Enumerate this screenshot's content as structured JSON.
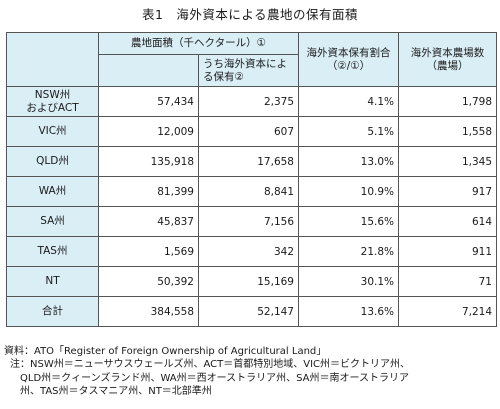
{
  "title": "表1　海外資本による農地の保有面積",
  "table": {
    "header": {
      "farmland_area": "農地面積（千ヘクタール）①",
      "foreign_owned": "うち海外資本による保有②",
      "foreign_ratio": "海外資本保有割合（②/①）",
      "farm_count": "海外資本農場数（農場）"
    },
    "rows": [
      {
        "label": "NSW州\nおよびACT",
        "area": "57,434",
        "foreign": "2,375",
        "ratio": "4.1%",
        "farms": "1,798"
      },
      {
        "label": "VIC州",
        "area": "12,009",
        "foreign": "607",
        "ratio": "5.1%",
        "farms": "1,558"
      },
      {
        "label": "QLD州",
        "area": "135,918",
        "foreign": "17,658",
        "ratio": "13.0%",
        "farms": "1,345"
      },
      {
        "label": "WA州",
        "area": "81,399",
        "foreign": "8,841",
        "ratio": "10.9%",
        "farms": "917"
      },
      {
        "label": "SA州",
        "area": "45,837",
        "foreign": "7,156",
        "ratio": "15.6%",
        "farms": "614"
      },
      {
        "label": "TAS州",
        "area": "1,569",
        "foreign": "342",
        "ratio": "21.8%",
        "farms": "911"
      },
      {
        "label": "NT",
        "area": "50,392",
        "foreign": "15,169",
        "ratio": "30.1%",
        "farms": "71"
      },
      {
        "label": "合計",
        "area": "384,558",
        "foreign": "52,147",
        "ratio": "13.6%",
        "farms": "7,214"
      }
    ]
  },
  "notes": {
    "source": "資料：ATO「Register of Foreign Ownership of Agricultural Land」",
    "note": "注：NSW州＝ニューサウスウェールズ州、ACT＝首都特別地域、VIC州＝ビクトリア州、\nQLD州＝クィーンズランド州、WA州＝西オーストラリア州、SA州＝南オーストラリア\n州、TAS州＝タスマニア州、NT＝北部準州"
  }
}
